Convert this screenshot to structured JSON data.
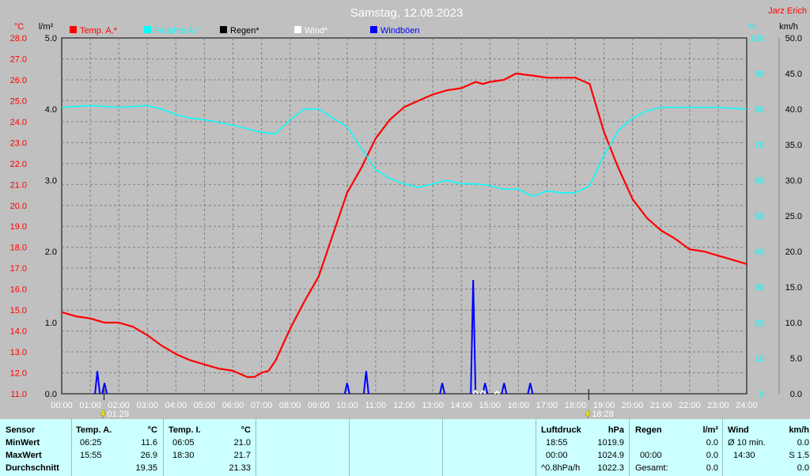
{
  "header": {
    "title": "Samstag, 12.08.2023",
    "author": "Jarz Erich"
  },
  "axes": {
    "left1_unit": "°C",
    "left2_unit": "l/m²",
    "right1_unit": "%",
    "right2_unit": "km/h",
    "temp_ticks": [
      "28.0",
      "27.0",
      "26.0",
      "25.0",
      "24.0",
      "23.0",
      "22.0",
      "21.0",
      "20.0",
      "19.0",
      "18.0",
      "17.0",
      "16.0",
      "15.0",
      "14.0",
      "13.0",
      "12.0",
      "11.0"
    ],
    "rain_ticks": [
      "5.0",
      "4.0",
      "3.0",
      "2.0",
      "1.0",
      "0.0"
    ],
    "hum_ticks": [
      "100",
      "90",
      "80",
      "70",
      "60",
      "50",
      "40",
      "30",
      "20",
      "10",
      "0"
    ],
    "wind_ticks": [
      "50.0",
      "45.0",
      "40.0",
      "35.0",
      "30.0",
      "25.0",
      "20.0",
      "15.0",
      "10.0",
      "5.0",
      "0.0"
    ],
    "x_ticks": [
      "00:00",
      "01:00",
      "02:00",
      "03:00",
      "04:00",
      "05:00",
      "06:00",
      "07:00",
      "08:00",
      "09:00",
      "10:00",
      "11:00",
      "12:00",
      "13:00",
      "14:00",
      "15:00",
      "16:00",
      "17:00",
      "18:00",
      "19:00",
      "20:00",
      "21:00",
      "22:00",
      "23:00",
      "24:00"
    ],
    "sunrise": "01:29",
    "sunset": "18:28"
  },
  "legend": [
    {
      "label": "Temp. A.*",
      "color": "#ff0000"
    },
    {
      "label": "Feuchte A.*",
      "color": "#00ffff"
    },
    {
      "label": "Regen*",
      "color": "#000000"
    },
    {
      "label": "Wind*",
      "color": "#ffffff"
    },
    {
      "label": "Windböen",
      "color": "#0000ff"
    }
  ],
  "chart_data": {
    "type": "line",
    "title": "Samstag, 12.08.2023",
    "x_range": [
      "00:00",
      "24:00"
    ],
    "series": [
      {
        "name": "Temp. A.*",
        "axis": "°C",
        "color": "#ff0000",
        "ylim": [
          11,
          28
        ],
        "points": [
          [
            "00:00",
            14.9
          ],
          [
            "00:30",
            14.7
          ],
          [
            "01:00",
            14.6
          ],
          [
            "01:30",
            14.4
          ],
          [
            "02:00",
            14.4
          ],
          [
            "02:30",
            14.2
          ],
          [
            "03:00",
            13.8
          ],
          [
            "03:30",
            13.3
          ],
          [
            "04:00",
            12.9
          ],
          [
            "04:30",
            12.6
          ],
          [
            "05:00",
            12.4
          ],
          [
            "05:30",
            12.2
          ],
          [
            "06:00",
            12.1
          ],
          [
            "06:30",
            11.8
          ],
          [
            "06:45",
            11.8
          ],
          [
            "07:00",
            12.0
          ],
          [
            "07:15",
            12.1
          ],
          [
            "07:30",
            12.6
          ],
          [
            "08:00",
            14.1
          ],
          [
            "08:30",
            15.4
          ],
          [
            "09:00",
            16.6
          ],
          [
            "09:30",
            18.6
          ],
          [
            "10:00",
            20.6
          ],
          [
            "10:30",
            21.8
          ],
          [
            "11:00",
            23.2
          ],
          [
            "11:30",
            24.1
          ],
          [
            "12:00",
            24.7
          ],
          [
            "12:30",
            25.0
          ],
          [
            "13:00",
            25.3
          ],
          [
            "13:30",
            25.5
          ],
          [
            "14:00",
            25.6
          ],
          [
            "14:30",
            25.9
          ],
          [
            "14:45",
            25.8
          ],
          [
            "15:00",
            25.9
          ],
          [
            "15:30",
            26.0
          ],
          [
            "15:55",
            26.3
          ],
          [
            "16:30",
            26.2
          ],
          [
            "17:00",
            26.1
          ],
          [
            "17:30",
            26.1
          ],
          [
            "18:00",
            26.1
          ],
          [
            "18:30",
            25.8
          ],
          [
            "19:00",
            23.5
          ],
          [
            "19:30",
            21.8
          ],
          [
            "20:00",
            20.3
          ],
          [
            "20:30",
            19.4
          ],
          [
            "21:00",
            18.8
          ],
          [
            "21:30",
            18.4
          ],
          [
            "22:00",
            17.9
          ],
          [
            "22:30",
            17.8
          ],
          [
            "23:00",
            17.6
          ],
          [
            "23:30",
            17.4
          ],
          [
            "24:00",
            17.2
          ]
        ]
      },
      {
        "name": "Feuchte A.*",
        "axis": "%",
        "color": "#00ffff",
        "ylim": [
          0,
          100
        ],
        "points": [
          [
            "00:00",
            80.5
          ],
          [
            "01:00",
            81
          ],
          [
            "02:00",
            80.5
          ],
          [
            "03:00",
            81
          ],
          [
            "03:30",
            80
          ],
          [
            "04:00",
            78.5
          ],
          [
            "04:30",
            77.5
          ],
          [
            "05:00",
            77
          ],
          [
            "06:00",
            75.5
          ],
          [
            "07:00",
            73.5
          ],
          [
            "07:30",
            73
          ],
          [
            "08:00",
            77
          ],
          [
            "08:30",
            80
          ],
          [
            "09:00",
            80
          ],
          [
            "09:30",
            77.5
          ],
          [
            "10:00",
            75
          ],
          [
            "10:30",
            69
          ],
          [
            "11:00",
            63
          ],
          [
            "11:30",
            60.5
          ],
          [
            "12:00",
            59
          ],
          [
            "12:30",
            58
          ],
          [
            "13:00",
            59
          ],
          [
            "13:30",
            60
          ],
          [
            "14:00",
            59
          ],
          [
            "14:30",
            59
          ],
          [
            "15:00",
            58.5
          ],
          [
            "15:30",
            57.5
          ],
          [
            "16:00",
            57.5
          ],
          [
            "16:30",
            55.5
          ],
          [
            "17:00",
            57
          ],
          [
            "17:30",
            56.5
          ],
          [
            "18:00",
            56.5
          ],
          [
            "18:30",
            58.5
          ],
          [
            "19:00",
            67
          ],
          [
            "19:30",
            74
          ],
          [
            "20:00",
            77.5
          ],
          [
            "20:30",
            79.5
          ],
          [
            "21:00",
            80.5
          ],
          [
            "22:00",
            80.5
          ],
          [
            "23:00",
            80.5
          ],
          [
            "24:00",
            80
          ]
        ]
      },
      {
        "name": "Windböen",
        "axis": "km/h",
        "color": "#0000ff",
        "ylim": [
          0,
          50
        ],
        "points": [
          [
            "01:15",
            3.2
          ],
          [
            "01:30",
            1.5
          ],
          [
            "10:00",
            1.5
          ],
          [
            "10:40",
            3.2
          ],
          [
            "13:20",
            1.5
          ],
          [
            "14:25",
            16.0
          ],
          [
            "14:50",
            1.5
          ],
          [
            "15:30",
            1.5
          ],
          [
            "16:25",
            1.5
          ]
        ]
      },
      {
        "name": "Wind*",
        "axis": "km/h",
        "color": "#ffffff",
        "ylim": [
          0,
          50
        ],
        "points": [
          [
            "14:30",
            0.4
          ],
          [
            "14:45",
            0.4
          ],
          [
            "15:15",
            0.3
          ]
        ]
      },
      {
        "name": "Regen*",
        "axis": "l/m²",
        "color": "#000000",
        "ylim": [
          0,
          5
        ],
        "points": []
      }
    ]
  },
  "stats": {
    "sensor": {
      "header": "Sensor",
      "rows": [
        "MinWert",
        "MaxWert",
        "Durchschnitt"
      ]
    },
    "temp_a": {
      "header": "Temp. A.",
      "unit": "°C",
      "min_time": "06:25",
      "min_val": "11.6",
      "max_time": "15:55",
      "max_val": "26.9",
      "avg": "19.35"
    },
    "temp_i": {
      "header": "Temp. I.",
      "unit": "°C",
      "min_time": "06:05",
      "min_val": "21.0",
      "max_time": "18:30",
      "max_val": "21.7",
      "avg": "21.33"
    },
    "pressure": {
      "header": "Luftdruck",
      "unit": "hPa",
      "min_time": "18:55",
      "min_val": "1019.9",
      "max_time": "00:00",
      "max_val": "1024.9",
      "trend_label": "^0.8hPa/h",
      "trend_val": "1022.3"
    },
    "rain": {
      "header": "Regen",
      "unit": "l/m²",
      "min_val": "0.0",
      "max_time": "00:00",
      "max_val": "0.0",
      "total_label": "Gesamt:",
      "total_val": "0.0"
    },
    "wind": {
      "header": "Wind",
      "unit": "km/h",
      "row1_label": "Ø 10 min.",
      "row1_val": "0.0",
      "row2_time": "14:30",
      "row2_val": "S 1.5",
      "row3_val": "0.0"
    }
  }
}
